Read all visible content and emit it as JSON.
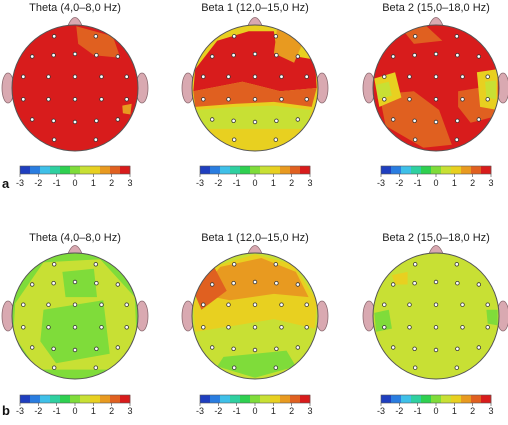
{
  "colors": {
    "scale": [
      "#1f3fbf",
      "#2a7de0",
      "#3fc0e8",
      "#2fd0a0",
      "#2fd050",
      "#7fdc3a",
      "#c8e034",
      "#e8d020",
      "#e89a20",
      "#e06020",
      "#d81c1c"
    ],
    "ear": "#d9a9b1"
  },
  "colorbar": {
    "ticks": [
      "-3",
      "-2",
      "-1",
      "0",
      "1",
      "2",
      "3"
    ]
  },
  "rows": [
    {
      "letter": "a",
      "maps": [
        {
          "title": "Theta (4,0–8,0 Hz)",
          "base": 10,
          "patches": [
            {
              "c": 8,
              "pts": [
                [
                  0.12,
                  -0.95
                ],
                [
                  0.55,
                  -0.78
                ],
                [
                  0.62,
                  -0.55
                ],
                [
                  0.35,
                  -0.6
                ],
                [
                  0.2,
                  -0.72
                ]
              ]
            },
            {
              "c": 9,
              "pts": [
                [
                  0.02,
                  -0.98
                ],
                [
                  0.6,
                  -0.82
                ],
                [
                  0.72,
                  -0.48
                ],
                [
                  0.3,
                  -0.52
                ],
                [
                  0.05,
                  -0.7
                ]
              ]
            },
            {
              "c": 8,
              "pts": [
                [
                  0.75,
                  0.28
                ],
                [
                  0.9,
                  0.25
                ],
                [
                  0.88,
                  0.42
                ],
                [
                  0.76,
                  0.4
                ]
              ]
            }
          ]
        },
        {
          "title": "Beta 1 (12,0–15,0 Hz)",
          "base": 7,
          "patches": [
            {
              "c": 10,
              "pts": [
                [
                  -0.95,
                  -0.3
                ],
                [
                  -0.6,
                  -0.75
                ],
                [
                  -0.1,
                  -0.9
                ],
                [
                  0.3,
                  -0.9
                ],
                [
                  0.35,
                  -0.55
                ],
                [
                  0.95,
                  -0.45
                ],
                [
                  0.98,
                  0.0
                ],
                [
                  0.4,
                  0.05
                ],
                [
                  -0.2,
                  -0.1
                ],
                [
                  -0.98,
                  0.05
                ]
              ]
            },
            {
              "c": 9,
              "pts": [
                [
                  -0.98,
                  0.05
                ],
                [
                  -0.2,
                  -0.1
                ],
                [
                  0.4,
                  0.05
                ],
                [
                  0.98,
                  0.0
                ],
                [
                  0.9,
                  0.3
                ],
                [
                  0.3,
                  0.22
                ],
                [
                  -0.3,
                  0.25
                ],
                [
                  -0.95,
                  0.3
                ]
              ]
            },
            {
              "c": 8,
              "pts": [
                [
                  0.35,
                  -0.95
                ],
                [
                  0.75,
                  -0.7
                ],
                [
                  0.62,
                  -0.4
                ],
                [
                  0.3,
                  -0.55
                ]
              ]
            },
            {
              "c": 6,
              "pts": [
                [
                  -0.95,
                  0.35
                ],
                [
                  -0.3,
                  0.3
                ],
                [
                  0.3,
                  0.28
                ],
                [
                  0.9,
                  0.35
                ],
                [
                  0.8,
                  0.65
                ],
                [
                  -0.8,
                  0.65
                ]
              ]
            }
          ]
        },
        {
          "title": "Beta 2 (15,0–18,0 Hz)",
          "base": 10,
          "patches": [
            {
              "c": 9,
              "pts": [
                [
                  -0.9,
                  0.1
                ],
                [
                  -0.35,
                  0.05
                ],
                [
                  0.05,
                  0.35
                ],
                [
                  0.25,
                  0.9
                ],
                [
                  -0.2,
                  0.95
                ],
                [
                  -0.8,
                  0.6
                ]
              ]
            },
            {
              "c": 9,
              "pts": [
                [
                  0.35,
                  0.05
                ],
                [
                  0.98,
                  -0.05
                ],
                [
                  0.95,
                  0.45
                ],
                [
                  0.55,
                  0.55
                ],
                [
                  0.35,
                  0.3
                ]
              ]
            },
            {
              "c": 9,
              "pts": [
                [
                  -0.55,
                  -0.95
                ],
                [
                  -0.15,
                  -0.98
                ],
                [
                  0.1,
                  -0.75
                ],
                [
                  -0.35,
                  -0.7
                ]
              ]
            },
            {
              "c": 7,
              "pts": [
                [
                  -0.98,
                  -0.15
                ],
                [
                  -0.65,
                  -0.25
                ],
                [
                  -0.55,
                  0.15
                ],
                [
                  -0.9,
                  0.3
                ]
              ]
            },
            {
              "c": 6,
              "pts": [
                [
                  -0.95,
                  -0.05
                ],
                [
                  -0.75,
                  -0.1
                ],
                [
                  -0.7,
                  0.12
                ],
                [
                  -0.92,
                  0.18
                ]
              ]
            },
            {
              "c": 7,
              "pts": [
                [
                  0.65,
                  -0.25
                ],
                [
                  0.98,
                  -0.3
                ],
                [
                  0.98,
                  0.35
                ],
                [
                  0.7,
                  0.3
                ]
              ]
            },
            {
              "c": 6,
              "pts": [
                [
                  0.78,
                  -0.1
                ],
                [
                  0.95,
                  -0.12
                ],
                [
                  0.95,
                  0.18
                ],
                [
                  0.8,
                  0.15
                ]
              ]
            }
          ]
        }
      ]
    },
    {
      "letter": "b",
      "maps": [
        {
          "title": "Theta (4,0–8,0 Hz)",
          "base": 5,
          "patches": [
            {
              "c": 6,
              "pts": [
                [
                  -0.95,
                  -0.2
                ],
                [
                  -0.5,
                  -0.85
                ],
                [
                  0.4,
                  -0.9
                ],
                [
                  0.95,
                  -0.3
                ],
                [
                  0.98,
                  0.4
                ],
                [
                  0.7,
                  0.85
                ],
                [
                  -0.6,
                  0.85
                ],
                [
                  -0.98,
                  0.3
                ]
              ]
            },
            {
              "c": 5,
              "pts": [
                [
                  -0.5,
                  -0.1
                ],
                [
                  0.45,
                  -0.25
                ],
                [
                  0.55,
                  0.6
                ],
                [
                  -0.3,
                  0.75
                ],
                [
                  -0.55,
                  0.4
                ]
              ]
            },
            {
              "c": 5,
              "pts": [
                [
                  -0.2,
                  -0.7
                ],
                [
                  0.3,
                  -0.75
                ],
                [
                  0.35,
                  -0.3
                ],
                [
                  -0.15,
                  -0.3
                ]
              ]
            }
          ]
        },
        {
          "title": "Beta 1 (12,0–15,0 Hz)",
          "base": 6,
          "patches": [
            {
              "c": 7,
              "pts": [
                [
                  -0.98,
                  -0.2
                ],
                [
                  -0.6,
                  -0.8
                ],
                [
                  0.0,
                  -0.98
                ],
                [
                  0.6,
                  -0.82
                ],
                [
                  0.98,
                  -0.25
                ],
                [
                  0.95,
                  0.2
                ],
                [
                  0.3,
                  0.05
                ],
                [
                  -0.3,
                  0.15
                ],
                [
                  -0.95,
                  0.25
                ]
              ]
            },
            {
              "c": 8,
              "pts": [
                [
                  -0.9,
                  -0.35
                ],
                [
                  -0.55,
                  -0.78
                ],
                [
                  0.1,
                  -0.92
                ],
                [
                  0.65,
                  -0.7
                ],
                [
                  0.85,
                  -0.3
                ],
                [
                  0.3,
                  -0.35
                ],
                [
                  -0.4,
                  -0.25
                ]
              ]
            },
            {
              "c": 10,
              "pts": [
                [
                  -0.95,
                  -0.35
                ],
                [
                  -0.7,
                  -0.7
                ],
                [
                  -0.55,
                  -0.45
                ],
                [
                  -0.8,
                  -0.2
                ]
              ]
            },
            {
              "c": 9,
              "pts": [
                [
                  -0.98,
                  -0.4
                ],
                [
                  -0.65,
                  -0.78
                ],
                [
                  -0.45,
                  -0.4
                ],
                [
                  -0.85,
                  -0.1
                ]
              ]
            },
            {
              "c": 5,
              "pts": [
                [
                  -0.5,
                  0.65
                ],
                [
                  0.5,
                  0.55
                ],
                [
                  0.65,
                  0.8
                ],
                [
                  0.0,
                  0.98
                ],
                [
                  -0.6,
                  0.8
                ]
              ]
            }
          ]
        },
        {
          "title": "Beta 2 (15,0–18,0 Hz)",
          "base": 6,
          "patches": [
            {
              "c": 5,
              "pts": [
                [
                  -0.98,
                  -0.05
                ],
                [
                  -0.75,
                  -0.1
                ],
                [
                  -0.7,
                  0.2
                ],
                [
                  -0.95,
                  0.25
                ]
              ]
            },
            {
              "c": 5,
              "pts": [
                [
                  0.8,
                  -0.1
                ],
                [
                  0.98,
                  -0.1
                ],
                [
                  0.98,
                  0.15
                ],
                [
                  0.82,
                  0.12
                ]
              ]
            },
            {
              "c": 7,
              "pts": [
                [
                  -0.7,
                  -0.65
                ],
                [
                  -0.45,
                  -0.7
                ],
                [
                  -0.45,
                  -0.5
                ],
                [
                  -0.65,
                  -0.5
                ]
              ]
            }
          ]
        }
      ]
    }
  ]
}
